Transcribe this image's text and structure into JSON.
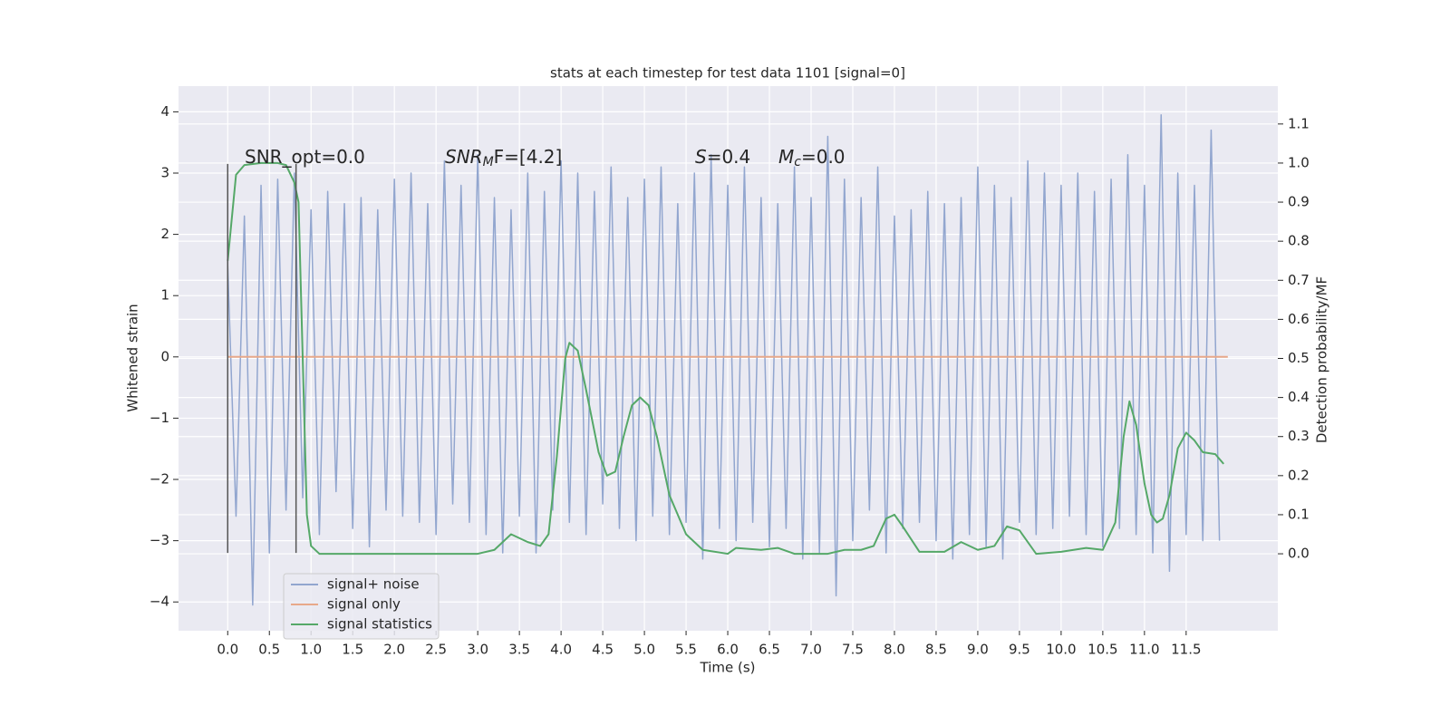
{
  "chart_data": {
    "type": "line",
    "title": "stats at each timestep for test data 1101 [signal=0]",
    "xlabel": "Time (s)",
    "ylabel": "Whitened strain",
    "y2label": "Detection probability/MF",
    "xlim": [
      -0.59,
      12.6
    ],
    "ylim": [
      -4.47,
      4.42
    ],
    "y2lim": [
      -0.197,
      1.197
    ],
    "xticks": [
      {
        "value": 0,
        "label": "0.0"
      },
      {
        "value": 0.5,
        "label": "0.5"
      },
      {
        "value": 1,
        "label": "1.0"
      },
      {
        "value": 1.5,
        "label": "1.5"
      },
      {
        "value": 2,
        "label": "2.0"
      },
      {
        "value": 2.5,
        "label": "2.5"
      },
      {
        "value": 3,
        "label": "3.0"
      },
      {
        "value": 3.5,
        "label": "3.5"
      },
      {
        "value": 4,
        "label": "4.0"
      },
      {
        "value": 4.5,
        "label": "4.5"
      },
      {
        "value": 5,
        "label": "5.0"
      },
      {
        "value": 5.5,
        "label": "5.5"
      },
      {
        "value": 6,
        "label": "6.0"
      },
      {
        "value": 6.5,
        "label": "6.5"
      },
      {
        "value": 7,
        "label": "7.0"
      },
      {
        "value": 7.5,
        "label": "7.5"
      },
      {
        "value": 8,
        "label": "8.0"
      },
      {
        "value": 8.5,
        "label": "8.5"
      },
      {
        "value": 9,
        "label": "9.0"
      },
      {
        "value": 9.5,
        "label": "9.5"
      },
      {
        "value": 10,
        "label": "10.0"
      },
      {
        "value": 10.5,
        "label": "10.5"
      },
      {
        "value": 11,
        "label": "11.0"
      },
      {
        "value": 11.5,
        "label": "11.5"
      }
    ],
    "yticks": [
      {
        "value": -4,
        "label": "−4"
      },
      {
        "value": -3,
        "label": "−3"
      },
      {
        "value": -2,
        "label": "−2"
      },
      {
        "value": -1,
        "label": "−1"
      },
      0,
      1,
      2,
      3,
      4
    ],
    "y2ticks": [
      {
        "value": 0,
        "label": "0.0"
      },
      {
        "value": 0.1,
        "label": "0.1"
      },
      {
        "value": 0.2,
        "label": "0.2"
      },
      {
        "value": 0.3,
        "label": "0.3"
      },
      {
        "value": 0.4,
        "label": "0.4"
      },
      {
        "value": 0.5,
        "label": "0.5"
      },
      {
        "value": 0.6,
        "label": "0.6"
      },
      {
        "value": 0.7,
        "label": "0.7"
      },
      {
        "value": 0.8,
        "label": "0.8"
      },
      {
        "value": 0.9,
        "label": "0.9"
      },
      {
        "value": 1.0,
        "label": "1.0"
      },
      {
        "value": 1.1,
        "label": "1.1"
      }
    ],
    "grid": true,
    "legend": "lower left",
    "series": [
      {
        "name": "signal+ noise",
        "color": "#92a6cf",
        "x": [
          0.0,
          0.1,
          0.2,
          0.3,
          0.4,
          0.5,
          0.6,
          0.7,
          0.8,
          0.9,
          1.0,
          1.1,
          1.2,
          1.3,
          1.4,
          1.5,
          1.6,
          1.7,
          1.8,
          1.9,
          2.0,
          2.1,
          2.2,
          2.3,
          2.4,
          2.5,
          2.6,
          2.7,
          2.8,
          2.9,
          3.0,
          3.1,
          3.2,
          3.3,
          3.4,
          3.5,
          3.6,
          3.7,
          3.8,
          3.9,
          4.0,
          4.1,
          4.2,
          4.3,
          4.4,
          4.5,
          4.6,
          4.7,
          4.8,
          4.9,
          5.0,
          5.1,
          5.2,
          5.3,
          5.4,
          5.5,
          5.6,
          5.7,
          5.8,
          5.9,
          6.0,
          6.1,
          6.2,
          6.3,
          6.4,
          6.5,
          6.6,
          6.7,
          6.8,
          6.9,
          7.0,
          7.1,
          7.2,
          7.3,
          7.4,
          7.5,
          7.6,
          7.7,
          7.8,
          7.9,
          8.0,
          8.1,
          8.2,
          8.3,
          8.4,
          8.5,
          8.6,
          8.7,
          8.8,
          8.9,
          9.0,
          9.1,
          9.2,
          9.3,
          9.4,
          9.5,
          9.6,
          9.7,
          9.8,
          9.9,
          10.0,
          10.1,
          10.2,
          10.3,
          10.4,
          10.5,
          10.6,
          10.7,
          10.8,
          10.9,
          11.0,
          11.1,
          11.2,
          11.3,
          11.4,
          11.5,
          11.6,
          11.7,
          11.8,
          11.9
        ],
        "values": [
          1.5,
          -2.6,
          2.3,
          -4.05,
          2.8,
          -3.2,
          2.9,
          -2.5,
          3.0,
          -2.3,
          2.4,
          -2.9,
          2.7,
          -2.2,
          2.5,
          -2.8,
          2.6,
          -3.1,
          2.4,
          -2.5,
          2.9,
          -2.6,
          3.0,
          -2.7,
          2.5,
          -2.9,
          3.2,
          -2.4,
          2.8,
          -2.7,
          3.3,
          -2.9,
          2.6,
          -3.2,
          2.4,
          -2.6,
          3.0,
          -3.2,
          2.7,
          -2.5,
          3.2,
          -2.7,
          3.0,
          -2.9,
          2.7,
          -2.4,
          3.1,
          -2.8,
          2.6,
          -3.0,
          2.9,
          -2.6,
          3.1,
          -2.9,
          2.5,
          -2.7,
          3.0,
          -3.3,
          3.3,
          -2.8,
          2.8,
          -3.0,
          3.1,
          -2.7,
          2.6,
          -3.1,
          2.5,
          -2.8,
          3.1,
          -3.3,
          2.6,
          -3.2,
          3.6,
          -3.9,
          2.9,
          -3.0,
          2.6,
          -2.5,
          3.1,
          -3.2,
          2.3,
          -2.8,
          2.4,
          -2.7,
          2.7,
          -3.0,
          2.5,
          -3.3,
          2.6,
          -2.9,
          3.1,
          -3.1,
          2.8,
          -3.3,
          2.6,
          -2.7,
          3.2,
          -2.9,
          3.0,
          -2.8,
          2.8,
          -2.6,
          3.0,
          -2.9,
          2.7,
          -3.1,
          2.9,
          -2.8,
          3.3,
          -2.9,
          2.8,
          -3.2,
          3.95,
          -3.5,
          3.0,
          -2.9,
          2.8,
          -3.0,
          3.7,
          -3.0
        ]
      },
      {
        "name": "signal only",
        "color": "#e8a98a",
        "x": [
          0.0,
          12.0
        ],
        "values": [
          0,
          0
        ]
      },
      {
        "name": "signal statistics",
        "color": "#55a868",
        "axis": "y2",
        "x": [
          0.0,
          0.1,
          0.2,
          0.4,
          0.6,
          0.7,
          0.8,
          0.85,
          0.9,
          0.95,
          1.0,
          1.1,
          1.5,
          2.0,
          2.5,
          3.0,
          3.2,
          3.4,
          3.6,
          3.75,
          3.85,
          3.95,
          4.05,
          4.1,
          4.2,
          4.3,
          4.45,
          4.55,
          4.65,
          4.75,
          4.85,
          4.95,
          5.05,
          5.15,
          5.3,
          5.5,
          5.7,
          6.0,
          6.1,
          6.4,
          6.6,
          6.8,
          7.2,
          7.4,
          7.6,
          7.75,
          7.9,
          8.0,
          8.1,
          8.3,
          8.6,
          8.8,
          9.0,
          9.2,
          9.35,
          9.5,
          9.7,
          10.0,
          10.3,
          10.5,
          10.65,
          10.75,
          10.82,
          10.9,
          11.0,
          11.08,
          11.15,
          11.22,
          11.3,
          11.4,
          11.5,
          11.6,
          11.7,
          11.85,
          11.95
        ],
        "values": [
          0.75,
          0.97,
          0.995,
          1.0,
          1.0,
          0.995,
          0.95,
          0.9,
          0.5,
          0.1,
          0.02,
          0.0,
          0.0,
          0.0,
          0.0,
          0.0,
          0.01,
          0.05,
          0.03,
          0.02,
          0.05,
          0.25,
          0.5,
          0.54,
          0.52,
          0.42,
          0.26,
          0.2,
          0.21,
          0.3,
          0.38,
          0.4,
          0.38,
          0.3,
          0.15,
          0.05,
          0.01,
          0.0,
          0.015,
          0.01,
          0.015,
          0.0,
          0.0,
          0.01,
          0.01,
          0.02,
          0.09,
          0.1,
          0.07,
          0.005,
          0.005,
          0.03,
          0.01,
          0.02,
          0.07,
          0.06,
          0.0,
          0.005,
          0.015,
          0.01,
          0.08,
          0.3,
          0.39,
          0.33,
          0.18,
          0.1,
          0.08,
          0.09,
          0.15,
          0.27,
          0.31,
          0.29,
          0.26,
          0.255,
          0.23
        ]
      }
    ],
    "vlines": {
      "x": [
        0,
        0.82
      ],
      "ymin": -3.2,
      "ymax": 3.15,
      "color": "#555555"
    },
    "annotations": [
      [
        {
          "text": "SNR_opt=0.0"
        }
      ],
      [
        {
          "text": "SNR",
          "style": "italic"
        },
        {
          "text": "M",
          "style": "sub"
        },
        {
          "text": "F=[4.2]"
        }
      ],
      [
        {
          "text": "S",
          "style": "italic"
        },
        {
          "text": "=0.4"
        }
      ],
      [
        {
          "text": "M",
          "style": "italic"
        },
        {
          "text": "c",
          "style": "sub"
        },
        {
          "text": "=0.0"
        }
      ]
    ]
  }
}
